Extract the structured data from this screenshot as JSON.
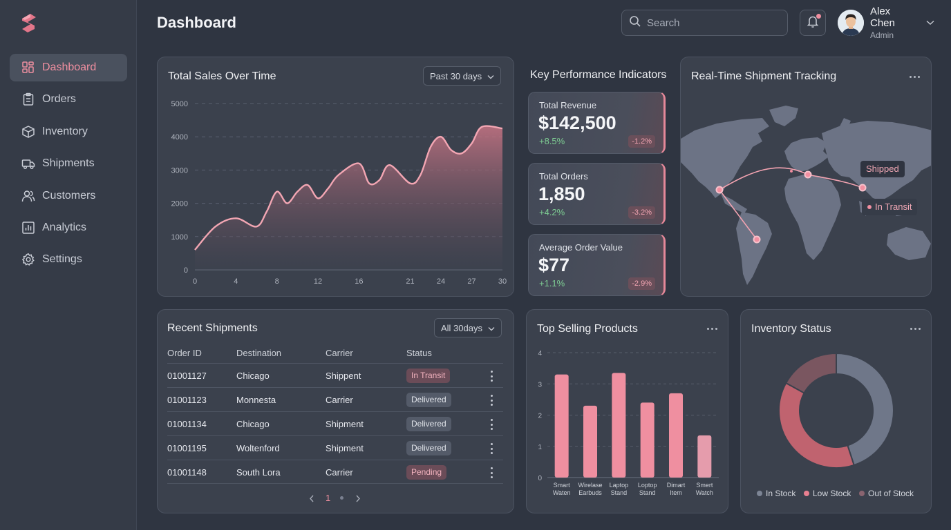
{
  "header": {
    "title": "Dashboard",
    "search_placeholder": "Search",
    "user_name": "Alex Chen",
    "user_role": "Admin"
  },
  "sidebar": {
    "items": [
      {
        "label": "Dashboard",
        "icon": "grid-icon",
        "active": true
      },
      {
        "label": "Orders",
        "icon": "clipboard-icon"
      },
      {
        "label": "Inventory",
        "icon": "box-icon"
      },
      {
        "label": "Shipments",
        "icon": "truck-icon"
      },
      {
        "label": "Customers",
        "icon": "users-icon"
      },
      {
        "label": "Analytics",
        "icon": "bar-chart-icon"
      },
      {
        "label": "Settings",
        "icon": "gear-icon"
      }
    ]
  },
  "colors": {
    "accent": "#f08fa0",
    "positive": "#7fcf94",
    "negative_badge": "#6a4f5a",
    "bars": "#ef8fa0",
    "donut_in_stock": "#6f7789",
    "donut_low_stock": "#c0636f",
    "donut_out_of_stock": "#7a5660"
  },
  "sales": {
    "title": "Total Sales Over Time",
    "range_label": "Past 30 days",
    "chart_data": {
      "type": "area",
      "x_ticks": [
        "0",
        "4",
        "8",
        "12",
        "16",
        "21",
        "24",
        "27",
        "30"
      ],
      "y_ticks": [
        "5000",
        "4000",
        "3000",
        "2000",
        "1000",
        "0"
      ],
      "ylim": [
        0,
        5000
      ],
      "x": [
        0,
        2,
        4,
        6,
        7,
        8,
        9,
        10,
        11,
        12,
        13,
        14,
        16,
        17,
        18,
        19,
        21,
        22,
        23,
        24,
        25,
        26,
        27,
        28,
        30
      ],
      "y": [
        600,
        1300,
        1550,
        1300,
        1750,
        2350,
        2000,
        2350,
        2550,
        2150,
        2450,
        2850,
        3200,
        2600,
        2700,
        3150,
        2600,
        2850,
        3700,
        4000,
        3600,
        3500,
        3800,
        4300,
        4250
      ]
    }
  },
  "kpi": {
    "title": "Key Performance Indicators",
    "items": [
      {
        "label": "Total Revenue",
        "value": "$142,500",
        "change": "+8.5%",
        "badge": "-1.2%"
      },
      {
        "label": "Total Orders",
        "value": "1,850",
        "change": "+4.2%",
        "badge": "-3.2%"
      },
      {
        "label": "Average Order Value",
        "value": "$77",
        "change": "+1.1%",
        "badge": "-2.9%"
      }
    ]
  },
  "tracking": {
    "title": "Real-Time Shipment Tracking",
    "label_shipped": "Shipped",
    "label_in_transit": "In Transit"
  },
  "shipments": {
    "title": "Recent Shipments",
    "filter_label": "All 30days",
    "columns": [
      "Order ID",
      "Destination",
      "Carrier",
      "Status"
    ],
    "rows": [
      {
        "order_id": "01001127",
        "destination": "Chicago",
        "carrier": "Shippent",
        "status": "In Transit",
        "status_type": "transit"
      },
      {
        "order_id": "01001123",
        "destination": "Monnesta",
        "carrier": "Carrier",
        "status": "Delivered",
        "status_type": "delivered"
      },
      {
        "order_id": "01001134",
        "destination": "Chicago",
        "carrier": "Shipment",
        "status": "Delivered",
        "status_type": "delivered"
      },
      {
        "order_id": "01001195",
        "destination": "Woltenford",
        "carrier": "Shipment",
        "status": "Delivered",
        "status_type": "delivered"
      },
      {
        "order_id": "01001148",
        "destination": "South Lora",
        "carrier": "Carrier",
        "status": "Pending",
        "status_type": "pending"
      }
    ],
    "pager_current": "1"
  },
  "products": {
    "title": "Top Selling Products",
    "chart_data": {
      "type": "bar",
      "categories": [
        [
          "Smart",
          "Waten"
        ],
        [
          "Wirelase",
          "Earbuds"
        ],
        [
          "Laptop",
          "Stand"
        ],
        [
          "Loptop",
          "Stand"
        ],
        [
          "Dimart",
          "Item"
        ],
        [
          "Smert",
          "Watch"
        ]
      ],
      "values": [
        3.3,
        2.3,
        3.35,
        2.4,
        2.7,
        1.35
      ],
      "y_ticks": [
        "4",
        "3",
        "2",
        "1",
        "0"
      ],
      "ylim": [
        0,
        4
      ]
    }
  },
  "inventory": {
    "title": "Inventory Status",
    "chart_data": {
      "type": "pie",
      "labels": [
        "In Stock",
        "Low Stock",
        "Out of Stock"
      ],
      "values": [
        45,
        38,
        17
      ]
    }
  }
}
